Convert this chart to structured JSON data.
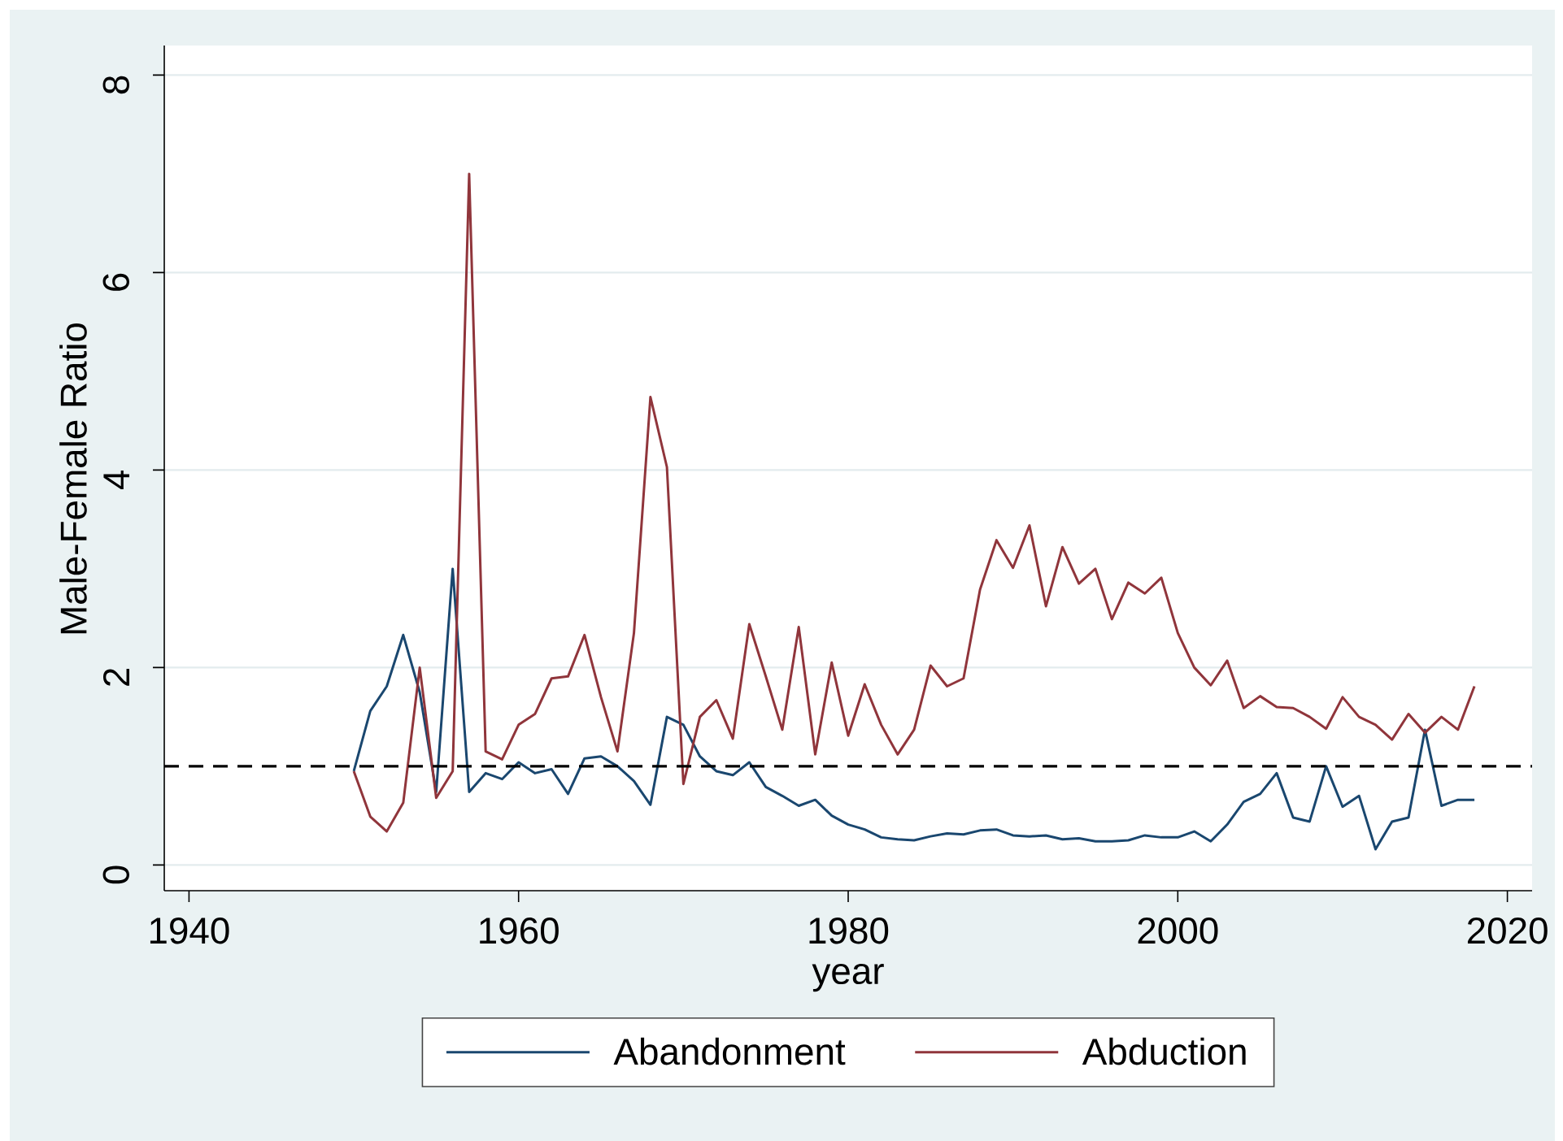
{
  "chart_data": {
    "type": "line",
    "xlabel": "year",
    "ylabel": "Male-Female Ratio",
    "x": [
      1950,
      1951,
      1952,
      1953,
      1954,
      1955,
      1956,
      1957,
      1958,
      1959,
      1960,
      1961,
      1962,
      1963,
      1964,
      1965,
      1966,
      1967,
      1968,
      1969,
      1970,
      1971,
      1972,
      1973,
      1974,
      1975,
      1976,
      1977,
      1978,
      1979,
      1980,
      1981,
      1982,
      1983,
      1984,
      1985,
      1986,
      1987,
      1988,
      1989,
      1990,
      1991,
      1992,
      1993,
      1994,
      1995,
      1996,
      1997,
      1998,
      1999,
      2000,
      2001,
      2002,
      2003,
      2004,
      2005,
      2006,
      2007,
      2008,
      2009,
      2010,
      2011,
      2012,
      2013,
      2014,
      2015,
      2016,
      2017,
      2018
    ],
    "series": [
      {
        "name": "Abandonment",
        "color": "#1a476f",
        "values": [
          0.95,
          1.56,
          1.81,
          2.33,
          1.75,
          0.74,
          3.0,
          0.74,
          0.93,
          0.87,
          1.04,
          0.93,
          0.97,
          0.72,
          1.08,
          1.1,
          1.0,
          0.85,
          0.61,
          1.5,
          1.42,
          1.1,
          0.95,
          0.91,
          1.04,
          0.79,
          0.7,
          0.6,
          0.66,
          0.5,
          0.41,
          0.36,
          0.28,
          0.26,
          0.25,
          0.29,
          0.32,
          0.31,
          0.35,
          0.36,
          0.3,
          0.29,
          0.3,
          0.26,
          0.27,
          0.24,
          0.24,
          0.25,
          0.3,
          0.28,
          0.28,
          0.34,
          0.24,
          0.41,
          0.64,
          0.72,
          0.93,
          0.48,
          0.44,
          1.0,
          0.59,
          0.7,
          0.16,
          0.44,
          0.48,
          1.37,
          0.6,
          0.66,
          0.66
        ]
      },
      {
        "name": "Abduction",
        "color": "#90353b",
        "values": [
          0.95,
          0.49,
          0.34,
          0.63,
          2.0,
          0.68,
          0.95,
          7.0,
          1.15,
          1.07,
          1.42,
          1.53,
          1.89,
          1.91,
          2.33,
          1.7,
          1.15,
          2.35,
          4.74,
          4.03,
          0.82,
          1.5,
          1.67,
          1.28,
          2.44,
          1.91,
          1.37,
          2.41,
          1.12,
          2.05,
          1.31,
          1.83,
          1.42,
          1.12,
          1.37,
          2.02,
          1.81,
          1.89,
          2.79,
          3.29,
          3.01,
          3.44,
          2.62,
          3.22,
          2.85,
          3.0,
          2.49,
          2.86,
          2.75,
          2.91,
          2.35,
          2.0,
          1.82,
          2.07,
          1.59,
          1.71,
          1.6,
          1.59,
          1.5,
          1.38,
          1.7,
          1.5,
          1.42,
          1.27,
          1.53,
          1.34,
          1.5,
          1.37,
          1.81
        ]
      }
    ],
    "xlim": [
      1938.5,
      2021.5
    ],
    "ylim": [
      -0.26,
      8.3
    ],
    "xticks": [
      1940,
      1960,
      1980,
      2000,
      2020
    ],
    "yticks": [
      0,
      2,
      4,
      6,
      8
    ],
    "grid": "y",
    "legend": "bottom",
    "marker": "none",
    "line_style": "solid",
    "ref_lines": [
      {
        "axis": "y",
        "value": 1,
        "color": "#000000",
        "line_style": "dashed"
      }
    ]
  }
}
